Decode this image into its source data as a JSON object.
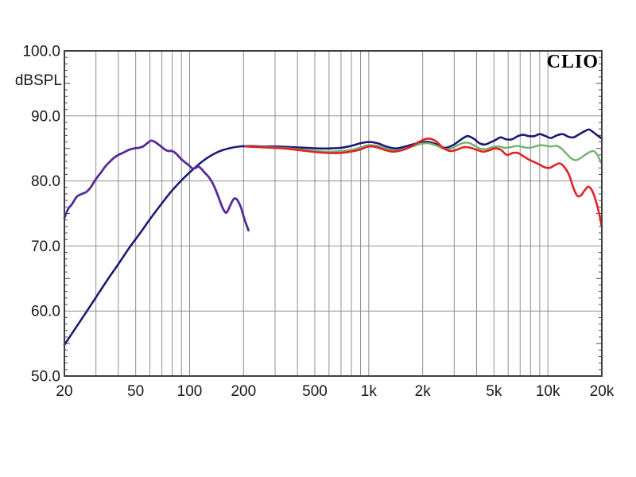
{
  "window": {
    "background": "#ffffff"
  },
  "branding": {
    "logo_text": "CLIO"
  },
  "chart_data": {
    "type": "line",
    "title": "",
    "xlabel": "",
    "ylabel": "dBSPL",
    "x_scale": "log",
    "xlim": [
      20,
      20000
    ],
    "ylim": [
      50,
      100
    ],
    "grid": true,
    "legend": "none",
    "colors": {
      "grid": "#8f8f8f",
      "border": "#3f3f3f",
      "tick": "#4a4a4a",
      "text": "#1a1a1a",
      "logo": "#000000"
    },
    "y_ticks": [
      {
        "value": 100,
        "label": "100.0"
      },
      {
        "value": 90,
        "label": "90.0"
      },
      {
        "value": 80,
        "label": "80.0"
      },
      {
        "value": 70,
        "label": "70.0"
      },
      {
        "value": 60,
        "label": "60.0"
      },
      {
        "value": 50,
        "label": "50.0"
      }
    ],
    "x_ticks": [
      {
        "value": 20,
        "label": "20"
      },
      {
        "value": 50,
        "label": "50"
      },
      {
        "value": 100,
        "label": "100"
      },
      {
        "value": 200,
        "label": "200"
      },
      {
        "value": 500,
        "label": "500"
      },
      {
        "value": 1000,
        "label": "1k"
      },
      {
        "value": 2000,
        "label": "2k"
      },
      {
        "value": 5000,
        "label": "5k"
      },
      {
        "value": 10000,
        "label": "10k"
      },
      {
        "value": 20000,
        "label": "20k"
      }
    ],
    "x_gridlines": [
      30,
      40,
      50,
      60,
      70,
      80,
      90,
      100,
      200,
      300,
      400,
      500,
      600,
      700,
      800,
      900,
      1000,
      2000,
      3000,
      4000,
      5000,
      6000,
      7000,
      8000,
      9000,
      10000
    ],
    "y_gridlines": [
      60,
      70,
      80,
      90
    ],
    "minor_y_tick_step_db": 1,
    "series": [
      {
        "name": "navy-full-range-response",
        "color": "#1b1b74",
        "width": 2.6,
        "points": [
          [
            20,
            54.8
          ],
          [
            23,
            57.3
          ],
          [
            26,
            59.5
          ],
          [
            30,
            62.1
          ],
          [
            35,
            64.9
          ],
          [
            40,
            67.2
          ],
          [
            46,
            69.7
          ],
          [
            53,
            72.0
          ],
          [
            60,
            74.1
          ],
          [
            68,
            76.1
          ],
          [
            78,
            78.2
          ],
          [
            88,
            79.8
          ],
          [
            100,
            81.3
          ],
          [
            113,
            82.6
          ],
          [
            128,
            83.7
          ],
          [
            145,
            84.5
          ],
          [
            165,
            85.0
          ],
          [
            190,
            85.3
          ],
          [
            220,
            85.35
          ],
          [
            260,
            85.3
          ],
          [
            310,
            85.3
          ],
          [
            370,
            85.2
          ],
          [
            440,
            85.1
          ],
          [
            520,
            85.0
          ],
          [
            610,
            85.0
          ],
          [
            700,
            85.1
          ],
          [
            800,
            85.4
          ],
          [
            900,
            85.8
          ],
          [
            1000,
            86.0
          ],
          [
            1120,
            85.8
          ],
          [
            1250,
            85.3
          ],
          [
            1400,
            85.0
          ],
          [
            1550,
            85.2
          ],
          [
            1750,
            85.6
          ],
          [
            1950,
            85.9
          ],
          [
            2150,
            86.0
          ],
          [
            2400,
            85.6
          ],
          [
            2650,
            85.1
          ],
          [
            2950,
            85.5
          ],
          [
            3250,
            86.3
          ],
          [
            3550,
            86.9
          ],
          [
            3850,
            86.5
          ],
          [
            4150,
            85.8
          ],
          [
            4450,
            85.6
          ],
          [
            4750,
            85.9
          ],
          [
            5100,
            86.3
          ],
          [
            5450,
            86.7
          ],
          [
            5850,
            86.4
          ],
          [
            6300,
            86.4
          ],
          [
            6800,
            86.9
          ],
          [
            7300,
            87.1
          ],
          [
            7800,
            86.9
          ],
          [
            8400,
            86.9
          ],
          [
            9000,
            87.2
          ],
          [
            9700,
            86.9
          ],
          [
            10400,
            86.6
          ],
          [
            11200,
            87.0
          ],
          [
            12100,
            87.2
          ],
          [
            13000,
            86.8
          ],
          [
            13900,
            86.7
          ],
          [
            15000,
            87.2
          ],
          [
            16200,
            87.7
          ],
          [
            17000,
            87.9
          ],
          [
            17900,
            87.5
          ],
          [
            18900,
            87.0
          ],
          [
            20000,
            86.5
          ]
        ]
      },
      {
        "name": "green-treble-variant",
        "color": "#72b172",
        "width": 2.4,
        "points": [
          [
            205,
            85.3
          ],
          [
            250,
            85.25
          ],
          [
            300,
            85.15
          ],
          [
            360,
            85.0
          ],
          [
            430,
            84.8
          ],
          [
            510,
            84.6
          ],
          [
            600,
            84.5
          ],
          [
            700,
            84.6
          ],
          [
            810,
            84.8
          ],
          [
            910,
            85.2
          ],
          [
            1000,
            85.5
          ],
          [
            1120,
            85.4
          ],
          [
            1250,
            85.0
          ],
          [
            1400,
            84.7
          ],
          [
            1560,
            84.9
          ],
          [
            1750,
            85.3
          ],
          [
            1950,
            85.7
          ],
          [
            2150,
            85.8
          ],
          [
            2400,
            85.4
          ],
          [
            2650,
            84.9
          ],
          [
            2950,
            85.1
          ],
          [
            3250,
            85.7
          ],
          [
            3550,
            85.9
          ],
          [
            3850,
            85.5
          ],
          [
            4150,
            85.0
          ],
          [
            4500,
            84.9
          ],
          [
            4900,
            85.2
          ],
          [
            5300,
            85.3
          ],
          [
            5750,
            85.1
          ],
          [
            6250,
            85.2
          ],
          [
            6750,
            85.4
          ],
          [
            7300,
            85.2
          ],
          [
            7900,
            85.1
          ],
          [
            8500,
            85.3
          ],
          [
            9100,
            85.5
          ],
          [
            9800,
            85.4
          ],
          [
            10500,
            85.3
          ],
          [
            11200,
            85.4
          ],
          [
            12000,
            84.9
          ],
          [
            12800,
            84.1
          ],
          [
            13600,
            83.4
          ],
          [
            14400,
            83.2
          ],
          [
            15200,
            83.5
          ],
          [
            16100,
            84.0
          ],
          [
            17000,
            84.4
          ],
          [
            17900,
            84.6
          ],
          [
            18700,
            84.2
          ],
          [
            19300,
            83.5
          ],
          [
            20000,
            82.6
          ]
        ]
      },
      {
        "name": "red-treble-variant",
        "color": "#e32222",
        "width": 2.6,
        "points": [
          [
            205,
            85.3
          ],
          [
            240,
            85.2
          ],
          [
            285,
            85.1
          ],
          [
            335,
            85.0
          ],
          [
            390,
            84.8
          ],
          [
            450,
            84.6
          ],
          [
            520,
            84.4
          ],
          [
            600,
            84.3
          ],
          [
            690,
            84.3
          ],
          [
            790,
            84.5
          ],
          [
            890,
            84.8
          ],
          [
            1000,
            85.3
          ],
          [
            1100,
            85.2
          ],
          [
            1220,
            84.8
          ],
          [
            1360,
            84.5
          ],
          [
            1520,
            84.7
          ],
          [
            1700,
            85.2
          ],
          [
            1880,
            85.9
          ],
          [
            2050,
            86.4
          ],
          [
            2200,
            86.5
          ],
          [
            2400,
            86.0
          ],
          [
            2600,
            85.1
          ],
          [
            2850,
            84.6
          ],
          [
            3100,
            84.8
          ],
          [
            3400,
            85.2
          ],
          [
            3700,
            85.1
          ],
          [
            4000,
            84.8
          ],
          [
            4350,
            84.5
          ],
          [
            4700,
            84.7
          ],
          [
            5050,
            85.0
          ],
          [
            5450,
            84.8
          ],
          [
            5900,
            84.0
          ],
          [
            6350,
            84.3
          ],
          [
            6800,
            84.3
          ],
          [
            7300,
            83.8
          ],
          [
            7800,
            83.3
          ],
          [
            8400,
            82.9
          ],
          [
            9000,
            82.5
          ],
          [
            9600,
            82.1
          ],
          [
            10200,
            82.0
          ],
          [
            10900,
            82.4
          ],
          [
            11600,
            82.7
          ],
          [
            12300,
            82.2
          ],
          [
            13100,
            81.0
          ],
          [
            13900,
            78.9
          ],
          [
            14600,
            77.7
          ],
          [
            15300,
            77.8
          ],
          [
            16000,
            78.5
          ],
          [
            16700,
            79.1
          ],
          [
            17400,
            78.8
          ],
          [
            18100,
            77.8
          ],
          [
            18800,
            76.3
          ],
          [
            19400,
            74.8
          ],
          [
            20000,
            72.9
          ]
        ]
      },
      {
        "name": "purple-bass-nearfield",
        "color": "#562b99",
        "width": 2.8,
        "points": [
          [
            20,
            74.3
          ],
          [
            21,
            75.7
          ],
          [
            22,
            76.4
          ],
          [
            23.5,
            77.6
          ],
          [
            25,
            78.0
          ],
          [
            26.5,
            78.3
          ],
          [
            28,
            79.0
          ],
          [
            30,
            80.3
          ],
          [
            32,
            81.3
          ],
          [
            34,
            82.3
          ],
          [
            36,
            83.0
          ],
          [
            38,
            83.6
          ],
          [
            40,
            84.0
          ],
          [
            43,
            84.4
          ],
          [
            46,
            84.8
          ],
          [
            49,
            85.0
          ],
          [
            52,
            85.1
          ],
          [
            55,
            85.3
          ],
          [
            58,
            85.8
          ],
          [
            61,
            86.2
          ],
          [
            64,
            86.0
          ],
          [
            67,
            85.6
          ],
          [
            70,
            85.2
          ],
          [
            73,
            84.8
          ],
          [
            76,
            84.6
          ],
          [
            80,
            84.6
          ],
          [
            84,
            84.2
          ],
          [
            88,
            83.6
          ],
          [
            92,
            83.1
          ],
          [
            96,
            82.7
          ],
          [
            100,
            82.3
          ],
          [
            104,
            81.9
          ],
          [
            108,
            82.0
          ],
          [
            112,
            82.2
          ],
          [
            116,
            81.9
          ],
          [
            121,
            81.3
          ],
          [
            127,
            80.7
          ],
          [
            133,
            79.9
          ],
          [
            139,
            78.8
          ],
          [
            145,
            77.5
          ],
          [
            151,
            76.2
          ],
          [
            156,
            75.4
          ],
          [
            160,
            75.1
          ],
          [
            164,
            75.5
          ],
          [
            169,
            76.3
          ],
          [
            174,
            77.0
          ],
          [
            178,
            77.3
          ],
          [
            183,
            77.2
          ],
          [
            188,
            76.7
          ],
          [
            193,
            76.0
          ],
          [
            198,
            75.0
          ],
          [
            203,
            74.0
          ],
          [
            208,
            73.2
          ],
          [
            213,
            72.4
          ]
        ]
      }
    ]
  }
}
